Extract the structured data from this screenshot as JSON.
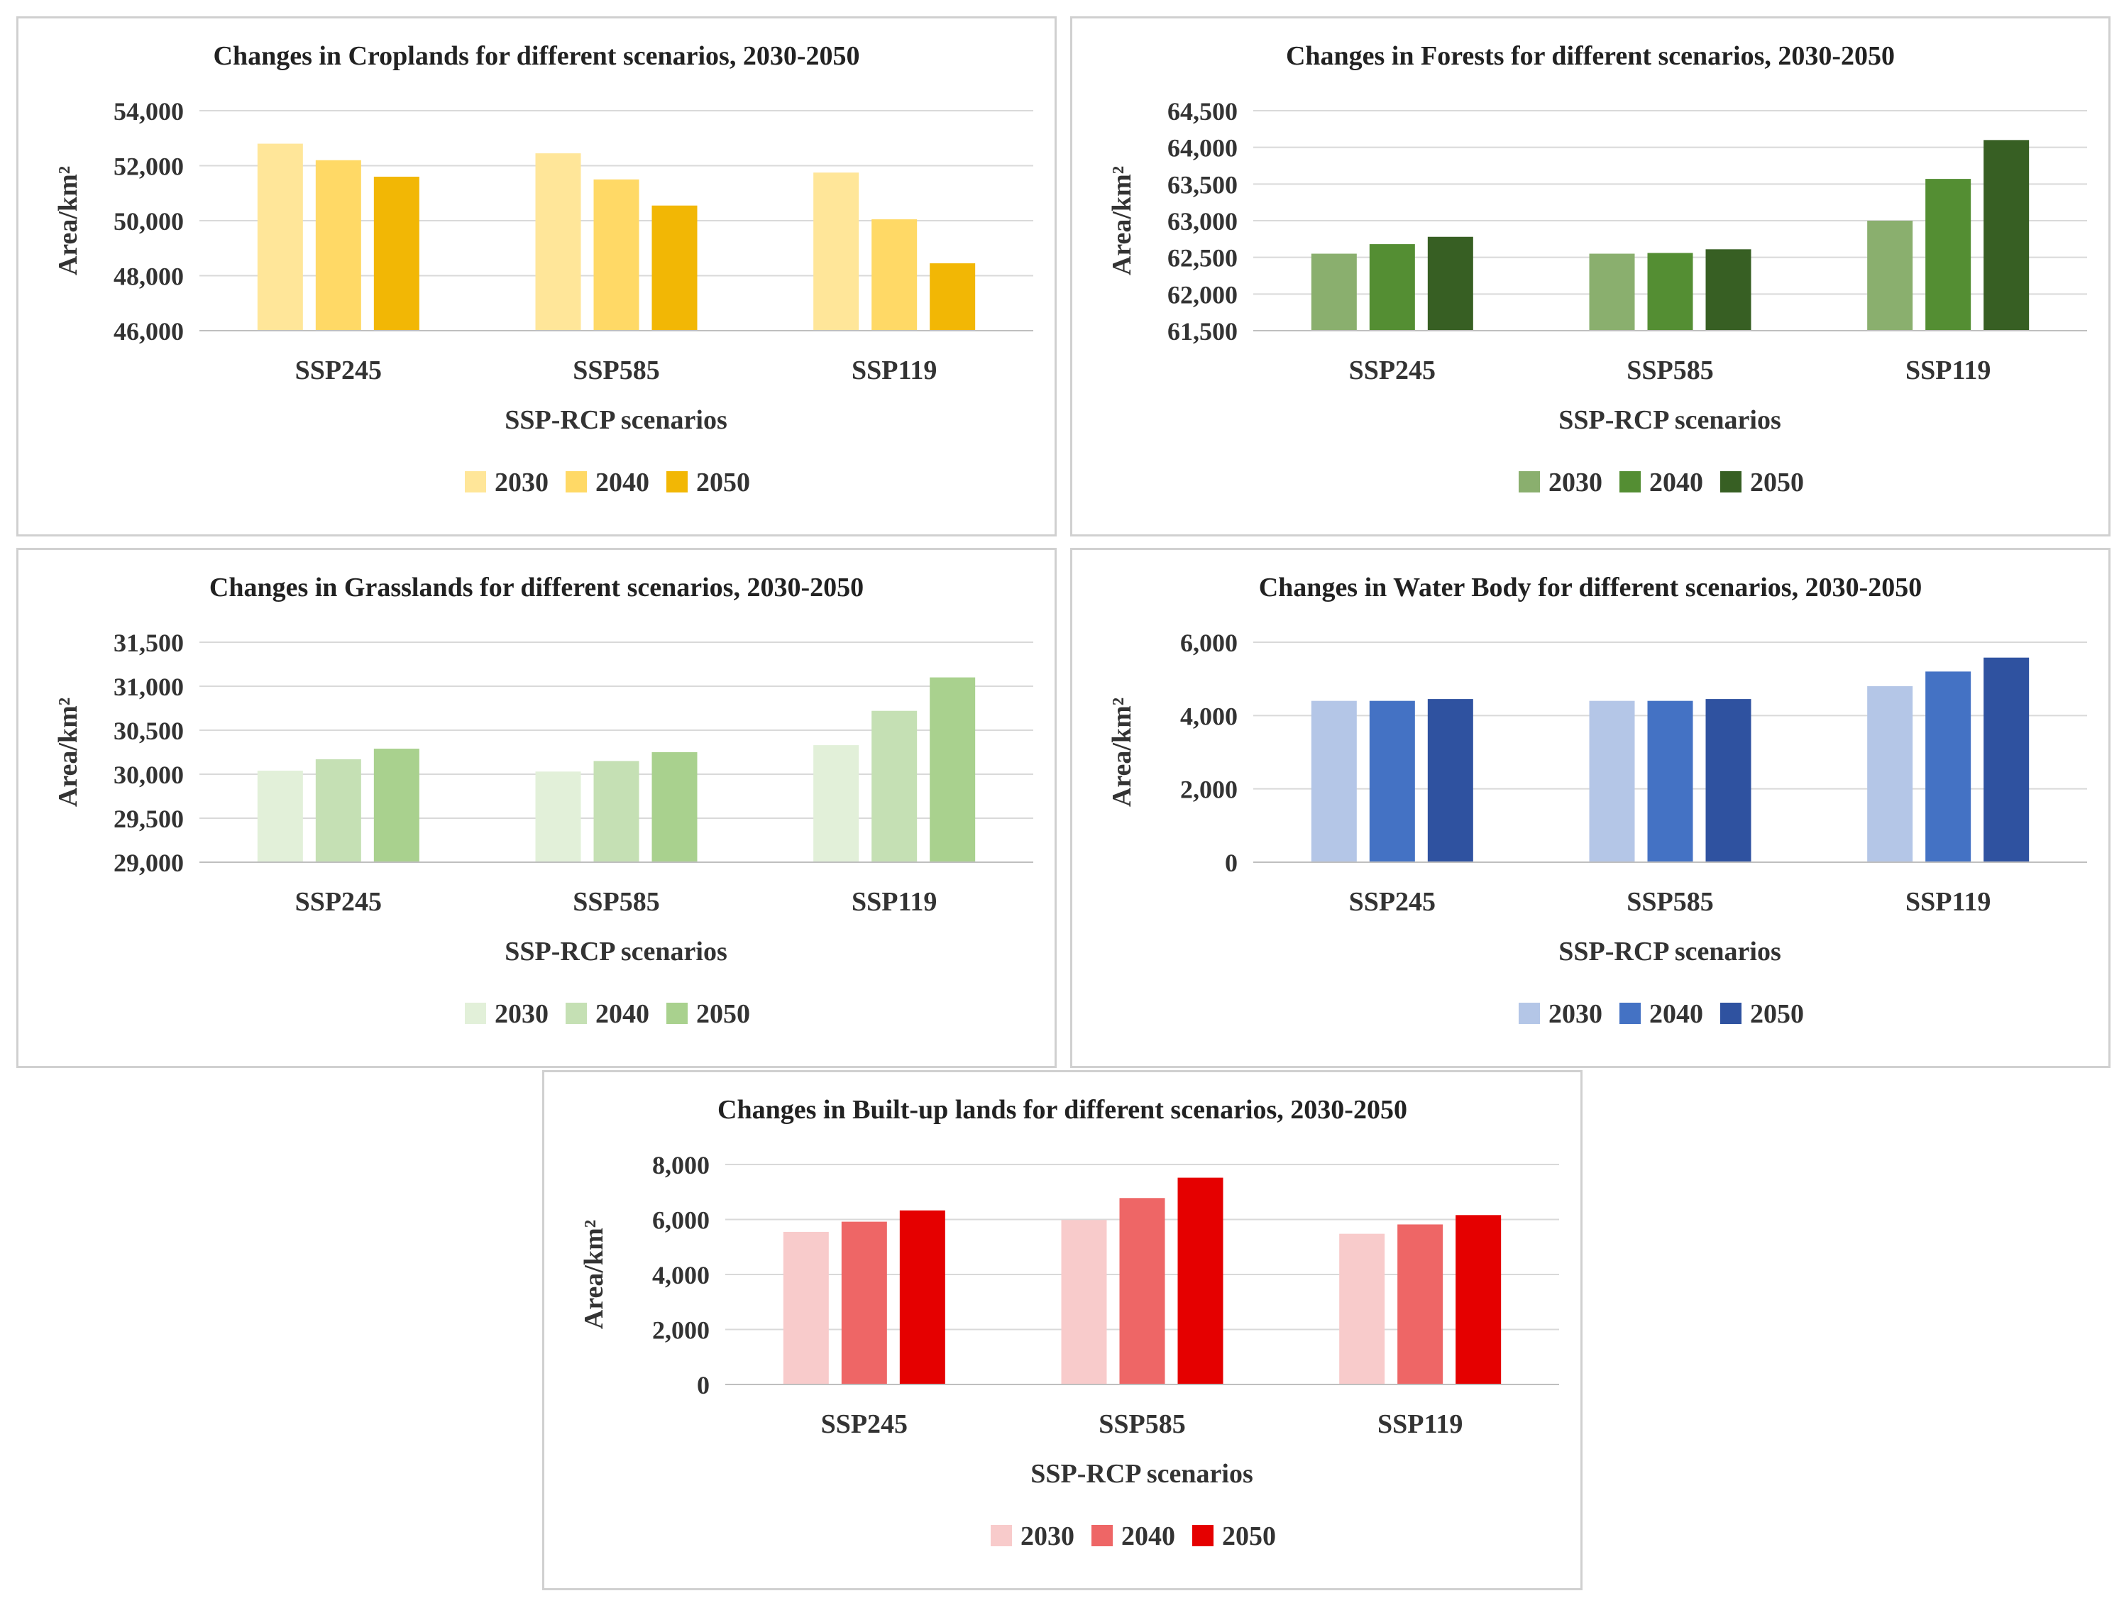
{
  "chart_data": [
    {
      "type": "bar",
      "title": "Changes in Croplands for different scenarios, 2030-2050",
      "xlabel": "SSP-RCP scenarios",
      "ylabel": "Area/km²",
      "categories": [
        "SSP245",
        "SSP585",
        "SSP119"
      ],
      "ylim": [
        46000,
        54000
      ],
      "yticks": [
        46000,
        48000,
        50000,
        52000,
        54000
      ],
      "yticklabels": [
        "46,000",
        "48,000",
        "50,000",
        "52,000",
        "54,000"
      ],
      "series": [
        {
          "name": "2030",
          "color": "#FFE699",
          "values": [
            52800,
            52450,
            51750
          ]
        },
        {
          "name": "2040",
          "color": "#FFD966",
          "values": [
            52200,
            51500,
            50050
          ]
        },
        {
          "name": "2050",
          "color": "#F2B705",
          "values": [
            51600,
            50550,
            48450
          ]
        }
      ],
      "legend": "bottom"
    },
    {
      "type": "bar",
      "title": "Changes in Forests for different scenarios, 2030-2050",
      "xlabel": "SSP-RCP scenarios",
      "ylabel": "Area/km²",
      "categories": [
        "SSP245",
        "SSP585",
        "SSP119"
      ],
      "ylim": [
        61500,
        64500
      ],
      "yticks": [
        61500,
        62000,
        62500,
        63000,
        63500,
        64000,
        64500
      ],
      "yticklabels": [
        "61,500",
        "62,000",
        "62,500",
        "63,000",
        "63,500",
        "64,000",
        "64,500"
      ],
      "series": [
        {
          "name": "2030",
          "color": "#8AAF6E",
          "values": [
            62550,
            62550,
            63000
          ]
        },
        {
          "name": "2040",
          "color": "#548E33",
          "values": [
            62680,
            62560,
            63570
          ]
        },
        {
          "name": "2050",
          "color": "#375F23",
          "values": [
            62780,
            62610,
            64100
          ]
        }
      ],
      "legend": "bottom"
    },
    {
      "type": "bar",
      "title": "Changes in Grasslands for different scenarios, 2030-2050",
      "xlabel": "SSP-RCP scenarios",
      "ylabel": "Area/km²",
      "categories": [
        "SSP245",
        "SSP585",
        "SSP119"
      ],
      "ylim": [
        29000,
        31500
      ],
      "yticks": [
        29000,
        29500,
        30000,
        30500,
        31000,
        31500
      ],
      "yticklabels": [
        "29,000",
        "29,500",
        "30,000",
        "30,500",
        "31,000",
        "31,500"
      ],
      "series": [
        {
          "name": "2030",
          "color": "#E2F0D9",
          "values": [
            30040,
            30030,
            30330
          ]
        },
        {
          "name": "2040",
          "color": "#C5E0B4",
          "values": [
            30170,
            30150,
            30720
          ]
        },
        {
          "name": "2050",
          "color": "#A9D18E",
          "values": [
            30290,
            30250,
            31100
          ]
        }
      ],
      "legend": "bottom"
    },
    {
      "type": "bar",
      "title": "Changes in Water Body for different scenarios, 2030-2050",
      "xlabel": "SSP-RCP scenarios",
      "ylabel": "Area/km²",
      "categories": [
        "SSP245",
        "SSP585",
        "SSP119"
      ],
      "ylim": [
        0,
        6000
      ],
      "yticks": [
        0,
        2000,
        4000,
        6000
      ],
      "yticklabels": [
        "0",
        "2,000",
        "4,000",
        "6,000"
      ],
      "series": [
        {
          "name": "2030",
          "color": "#B4C6E7",
          "values": [
            4400,
            4400,
            4800
          ]
        },
        {
          "name": "2040",
          "color": "#4472C4",
          "values": [
            4400,
            4400,
            5200
          ]
        },
        {
          "name": "2050",
          "color": "#2F52A0",
          "values": [
            4450,
            4450,
            5580
          ]
        }
      ],
      "legend": "bottom"
    },
    {
      "type": "bar",
      "title": "Changes in Built-up lands for different scenarios, 2030-2050",
      "xlabel": "SSP-RCP scenarios",
      "ylabel": "Area/km²",
      "categories": [
        "SSP245",
        "SSP585",
        "SSP119"
      ],
      "ylim": [
        0,
        8000
      ],
      "yticks": [
        0,
        2000,
        4000,
        6000,
        8000
      ],
      "yticklabels": [
        "0",
        "2,000",
        "4,000",
        "6,000",
        "8,000"
      ],
      "series": [
        {
          "name": "2030",
          "color": "#F8CBCB",
          "values": [
            5550,
            5980,
            5480
          ]
        },
        {
          "name": "2040",
          "color": "#EE6666",
          "values": [
            5920,
            6780,
            5820
          ]
        },
        {
          "name": "2050",
          "color": "#E50000",
          "values": [
            6330,
            7520,
            6160
          ]
        }
      ],
      "legend": "bottom"
    }
  ]
}
